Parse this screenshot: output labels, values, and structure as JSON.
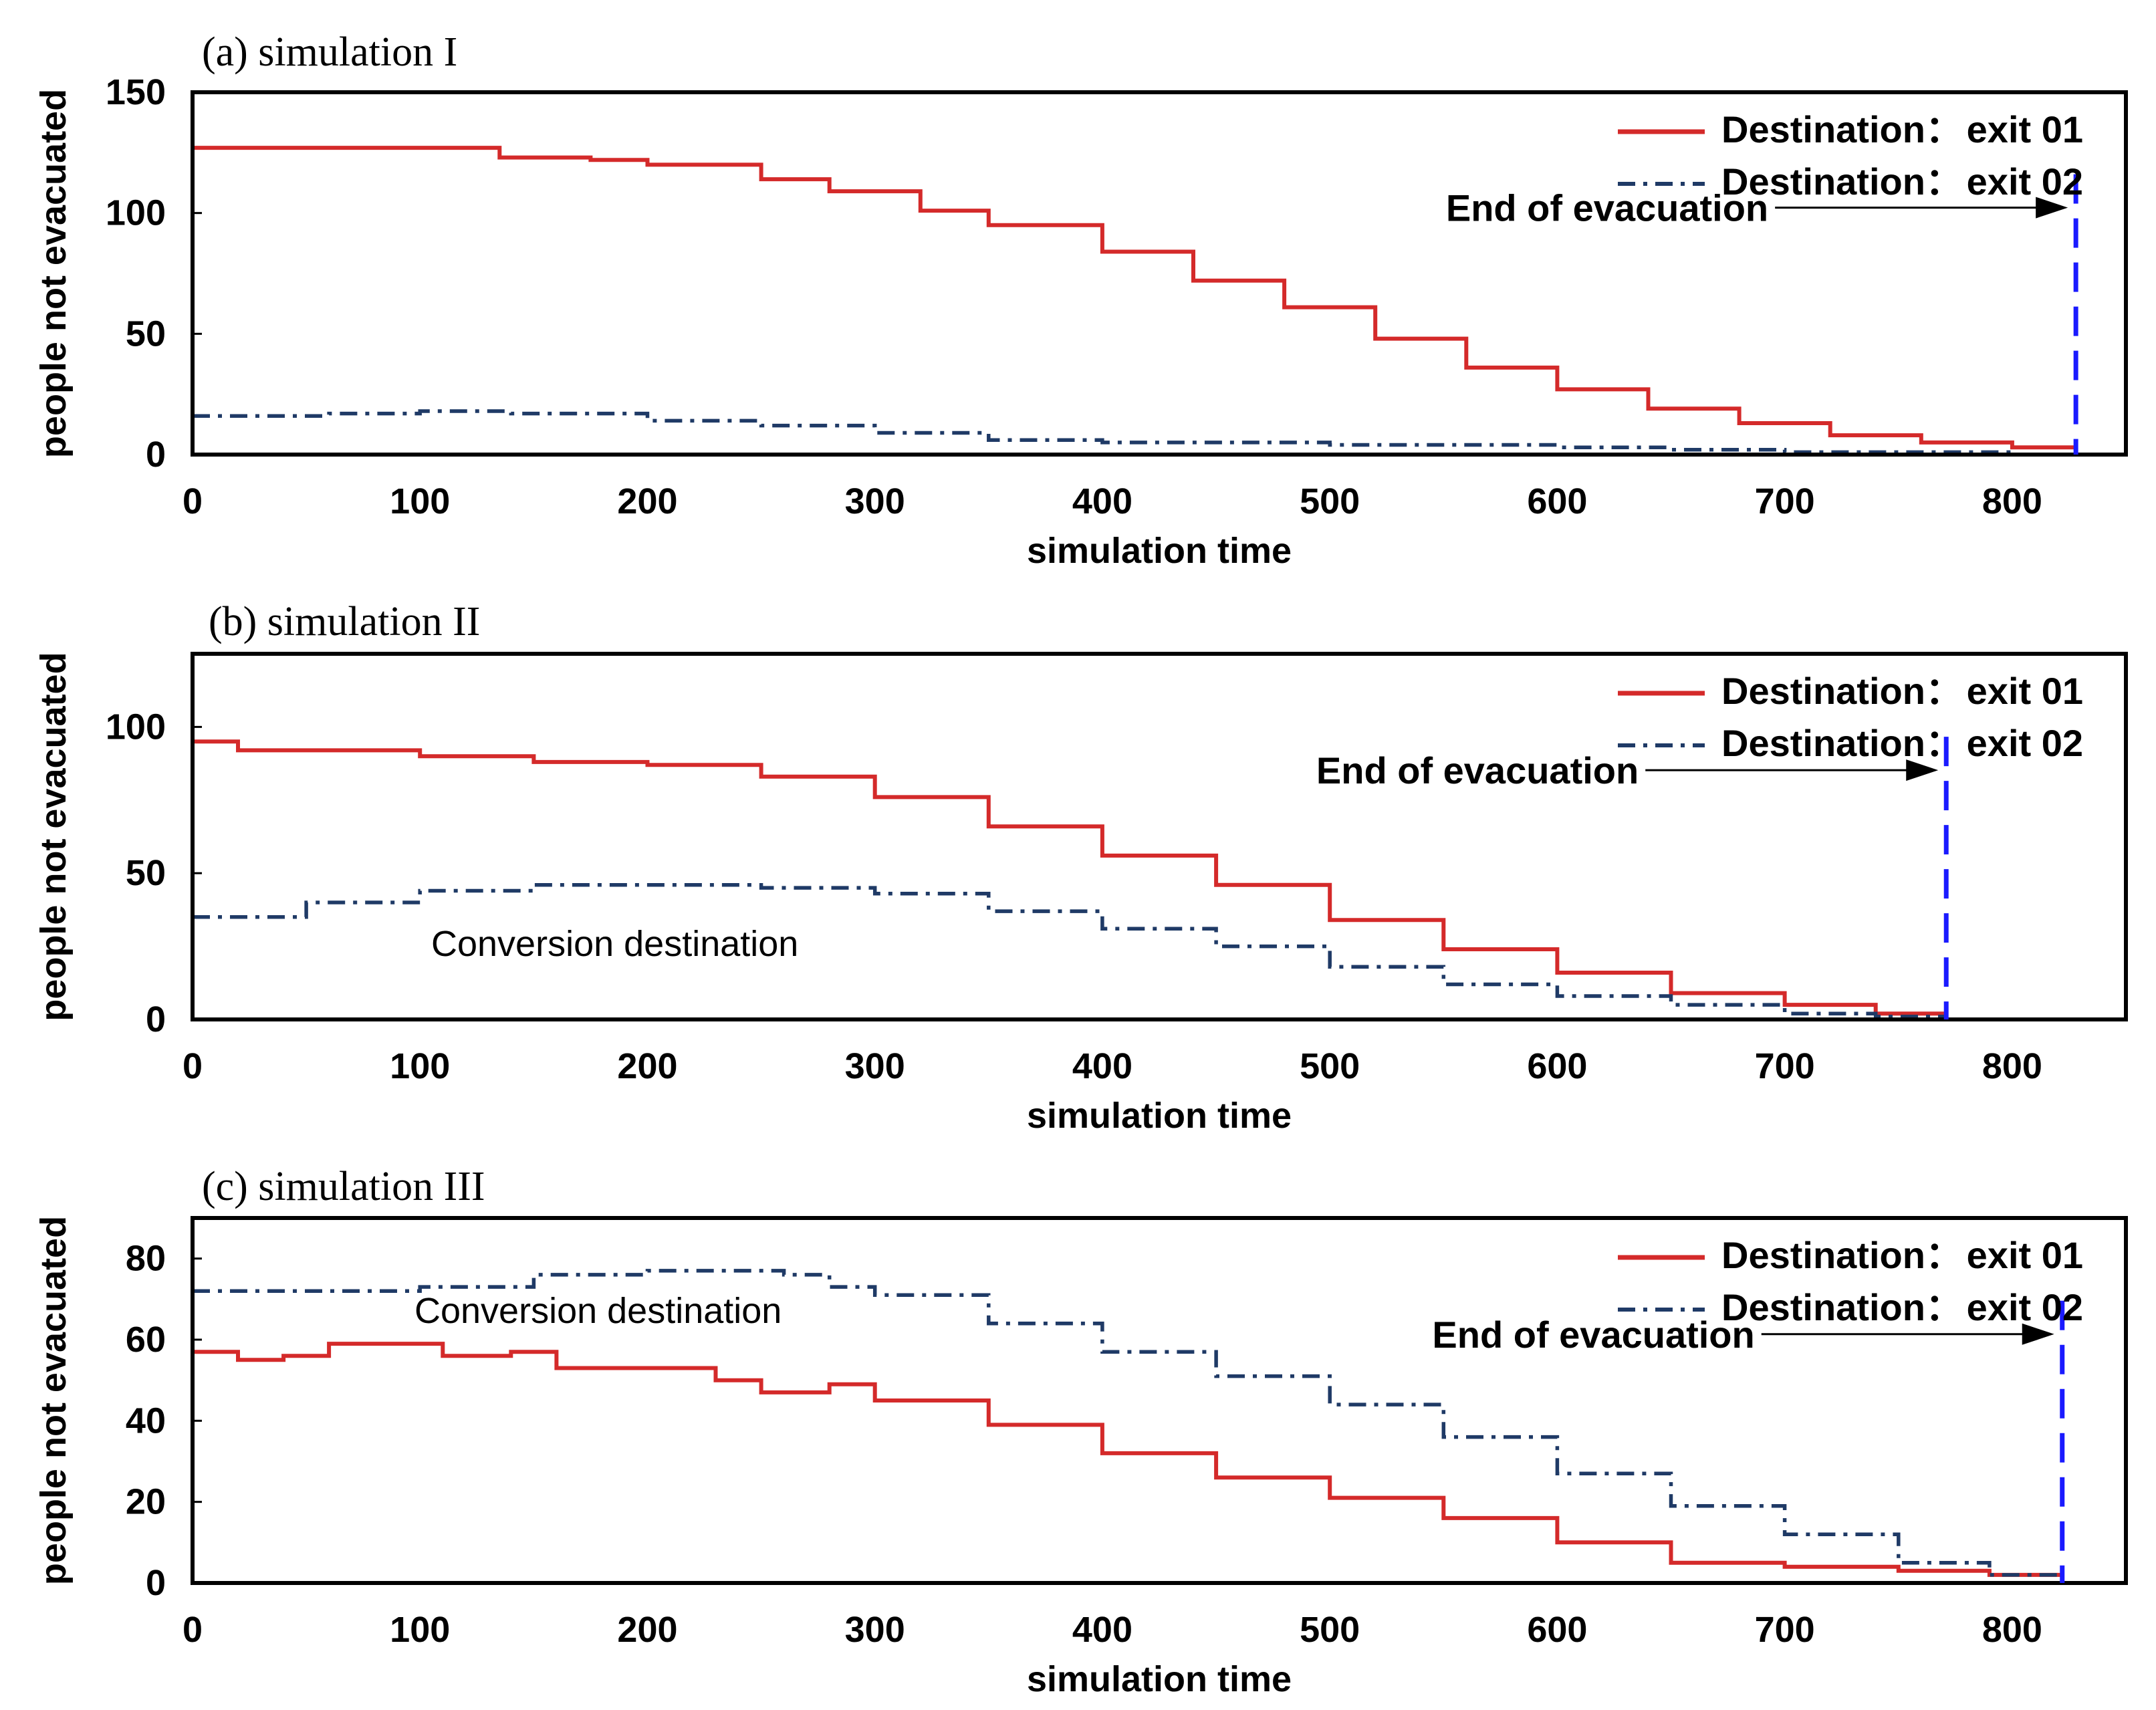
{
  "figure": {
    "background": "#ffffff"
  },
  "colors": {
    "exit01": "#d42a2a",
    "exit02": "#1f3a66",
    "end_marker": "#1a1aff",
    "axis": "#000000"
  },
  "chart_data": [
    {
      "type": "line",
      "title": "(a) simulation I",
      "xlabel": "simulation time",
      "ylabel": "people not evacuated",
      "xlim": [
        0,
        850
      ],
      "ylim": [
        0,
        150
      ],
      "xticks": [
        0,
        100,
        200,
        300,
        400,
        500,
        600,
        700,
        800
      ],
      "yticks": [
        0,
        50,
        100,
        150
      ],
      "legend": {
        "position": "top-right",
        "label_prefix": "Destination：",
        "entries": [
          "exit 01",
          "exit 02"
        ]
      },
      "end_label": "End of evacuation",
      "end_time": 828,
      "series": [
        {
          "name": "exit 01",
          "style": "solid",
          "x": [
            0,
            60,
            100,
            135,
            175,
            200,
            250,
            280,
            320,
            350,
            400,
            440,
            480,
            520,
            560,
            600,
            640,
            680,
            720,
            760,
            800,
            828
          ],
          "y": [
            127,
            127,
            127,
            123,
            122,
            120,
            114,
            109,
            101,
            95,
            84,
            72,
            61,
            48,
            36,
            27,
            19,
            13,
            8,
            5,
            3,
            1
          ]
        },
        {
          "name": "exit 02",
          "style": "dashdot",
          "x": [
            0,
            60,
            100,
            140,
            170,
            200,
            250,
            300,
            350,
            400,
            450,
            500,
            550,
            600,
            650,
            700,
            750,
            800,
            828
          ],
          "y": [
            16,
            17,
            18,
            17,
            17,
            14,
            12,
            9,
            6,
            5,
            5,
            4,
            4,
            3,
            2,
            1,
            1,
            0,
            0
          ]
        }
      ]
    },
    {
      "type": "line",
      "title": "(b) simulation II",
      "xlabel": "simulation time",
      "ylabel": "people not evacuated",
      "xlim": [
        0,
        850
      ],
      "ylim": [
        0,
        125
      ],
      "xticks": [
        0,
        100,
        200,
        300,
        400,
        500,
        600,
        700,
        800
      ],
      "yticks": [
        0,
        50,
        100
      ],
      "legend": {
        "position": "top-right",
        "label_prefix": "Destination：",
        "entries": [
          "exit 01",
          "exit 02"
        ]
      },
      "annotations": [
        "Conversion destination"
      ],
      "end_label": "End of evacuation",
      "end_time": 771,
      "series": [
        {
          "name": "exit 01",
          "style": "solid",
          "x": [
            0,
            20,
            50,
            100,
            150,
            200,
            250,
            300,
            350,
            400,
            450,
            500,
            550,
            600,
            650,
            700,
            740,
            771
          ],
          "y": [
            95,
            92,
            92,
            90,
            88,
            87,
            83,
            76,
            66,
            56,
            46,
            34,
            24,
            16,
            9,
            5,
            2,
            1
          ]
        },
        {
          "name": "exit 02",
          "style": "dashdot",
          "x": [
            0,
            50,
            100,
            150,
            200,
            250,
            300,
            350,
            400,
            450,
            500,
            550,
            600,
            650,
            700,
            740,
            771
          ],
          "y": [
            35,
            40,
            44,
            46,
            46,
            45,
            43,
            37,
            31,
            25,
            18,
            12,
            8,
            5,
            2,
            1,
            0
          ]
        }
      ]
    },
    {
      "type": "line",
      "title": "(c) simulation III",
      "xlabel": "simulation time",
      "ylabel": "people not evacuated",
      "xlim": [
        0,
        850
      ],
      "ylim": [
        0,
        90
      ],
      "xticks": [
        0,
        100,
        200,
        300,
        400,
        500,
        600,
        700,
        800
      ],
      "yticks": [
        0,
        20,
        40,
        60,
        80
      ],
      "legend": {
        "position": "top-right",
        "label_prefix": "Destination：",
        "entries": [
          "exit 01",
          "exit 02"
        ]
      },
      "annotations": [
        "Conversion destination"
      ],
      "end_label": "End of evacuation",
      "end_time": 822,
      "series": [
        {
          "name": "exit 01",
          "style": "solid",
          "x": [
            0,
            20,
            40,
            60,
            90,
            110,
            140,
            160,
            200,
            230,
            250,
            280,
            300,
            350,
            400,
            450,
            500,
            550,
            600,
            650,
            700,
            750,
            790,
            822
          ],
          "y": [
            57,
            55,
            56,
            59,
            59,
            56,
            57,
            53,
            53,
            50,
            47,
            49,
            45,
            39,
            32,
            26,
            21,
            16,
            10,
            5,
            4,
            3,
            2,
            2
          ]
        },
        {
          "name": "exit 02",
          "style": "dashdot",
          "x": [
            0,
            50,
            100,
            150,
            200,
            230,
            260,
            280,
            300,
            350,
            400,
            450,
            500,
            550,
            600,
            650,
            700,
            750,
            790,
            822
          ],
          "y": [
            72,
            72,
            73,
            76,
            77,
            77,
            76,
            73,
            71,
            64,
            57,
            51,
            44,
            36,
            27,
            19,
            12,
            5,
            2,
            2
          ]
        }
      ]
    }
  ]
}
